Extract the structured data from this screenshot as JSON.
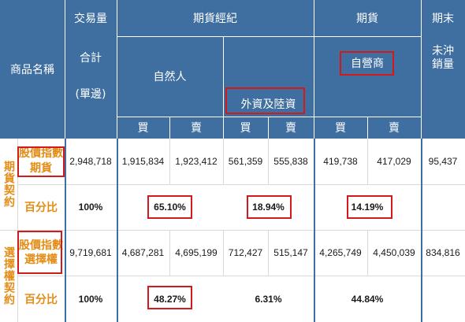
{
  "header": {
    "product_name": "商品名稱",
    "volume_title": "交易量",
    "volume_total": "合計",
    "volume_side": "(單邊)",
    "futures_broker": "期貨經紀",
    "natural_person": "自然人",
    "foreign_mainland": "外資及陸資",
    "futures": "期貨",
    "proprietary": "自營商",
    "period_end": "期末",
    "open_interest": "未沖銷量",
    "buy": "買",
    "sell": "賣"
  },
  "groups": {
    "futures_contract": "期貨契約",
    "options_contract": "選擇權契約"
  },
  "rows": {
    "index_futures": {
      "label": "股價指數期貨",
      "total": "2,948,718",
      "natural_buy": "1,915,834",
      "natural_sell": "1,923,412",
      "foreign_buy": "561,359",
      "foreign_sell": "555,838",
      "prop_buy": "419,738",
      "prop_sell": "417,029",
      "open_interest": "95,437"
    },
    "futures_pct": {
      "label": "百分比",
      "total": "100%",
      "natural": "65.10%",
      "foreign": "18.94%",
      "prop": "14.19%"
    },
    "index_options": {
      "label": "股價指數選擇權",
      "total": "9,719,681",
      "natural_buy": "4,687,281",
      "natural_sell": "4,695,199",
      "foreign_buy": "712,427",
      "foreign_sell": "515,147",
      "prop_buy": "4,265,749",
      "prop_sell": "4,450,039",
      "open_interest": "834,816"
    },
    "options_pct": {
      "label": "百分比",
      "total": "100%",
      "natural": "48.27%",
      "foreign": "6.31%",
      "prop": "44.84%"
    }
  },
  "colors": {
    "header_bg": "#3e6fa0",
    "header_text": "#ffffff",
    "accent_orange": "#e38d17",
    "highlight_red": "#d21a1a",
    "divider_blue": "#3e6fa0"
  }
}
